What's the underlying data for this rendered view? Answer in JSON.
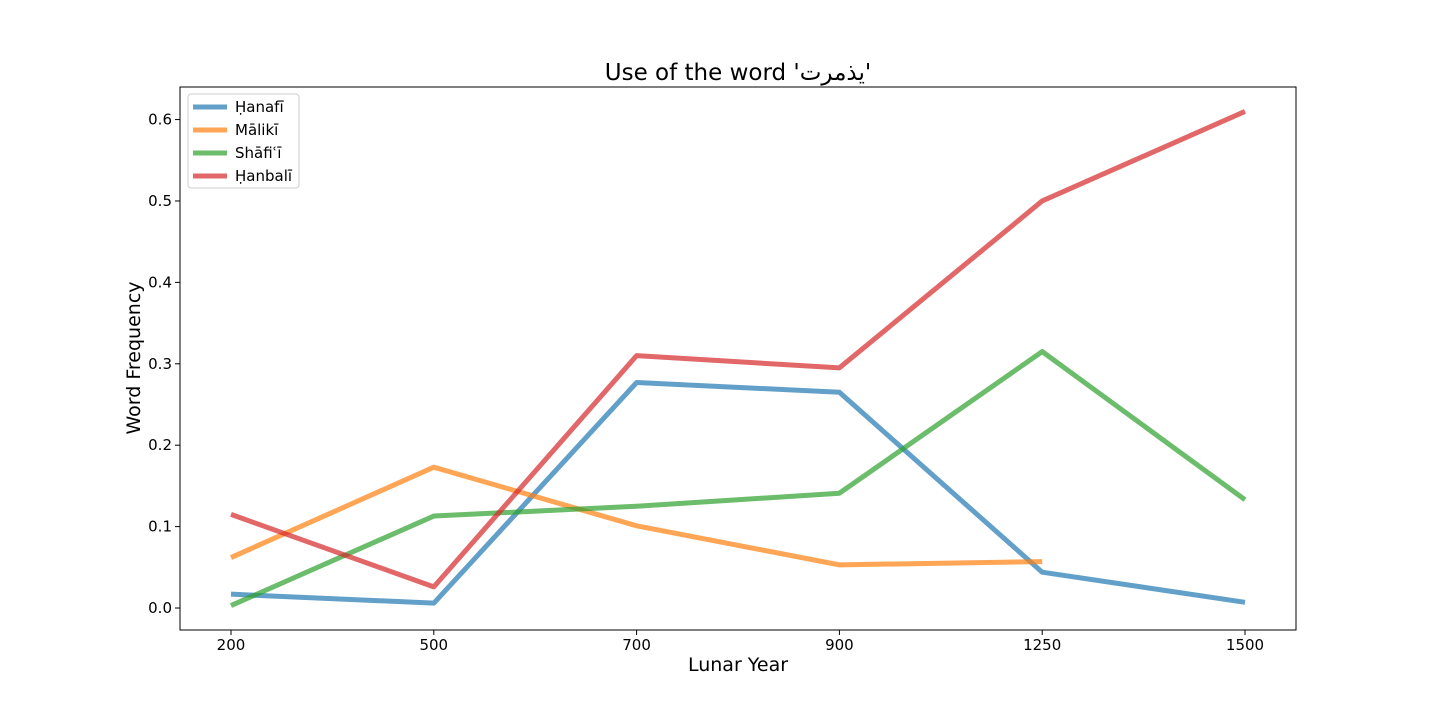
{
  "chart_data": {
    "type": "line",
    "title": "Use of the word 'يذمرت'",
    "xlabel": "Lunar Year",
    "ylabel": "Word Frequency",
    "categories": [
      "200",
      "500",
      "700",
      "900",
      "1250",
      "1500"
    ],
    "ylim": [
      -0.027,
      0.64
    ],
    "yticks": [
      "0.0",
      "0.1",
      "0.2",
      "0.3",
      "0.4",
      "0.5",
      "0.6"
    ],
    "grid": false,
    "legend_position": "top-left",
    "series": [
      {
        "name": "Ḥanafī",
        "color": "#1f77b4",
        "values": [
          0.017,
          0.006,
          0.277,
          0.265,
          0.044,
          0.007
        ]
      },
      {
        "name": "Mālikī",
        "color": "#ff7f0e",
        "values": [
          0.062,
          0.173,
          0.101,
          0.053,
          0.057,
          null
        ]
      },
      {
        "name": "Shāfiʿī",
        "color": "#2ca02c",
        "values": [
          0.003,
          0.113,
          0.125,
          0.141,
          0.315,
          0.133
        ]
      },
      {
        "name": "Ḥanbalī",
        "color": "#d62728",
        "values": [
          0.115,
          0.026,
          0.31,
          0.295,
          0.5,
          0.61
        ]
      }
    ]
  }
}
